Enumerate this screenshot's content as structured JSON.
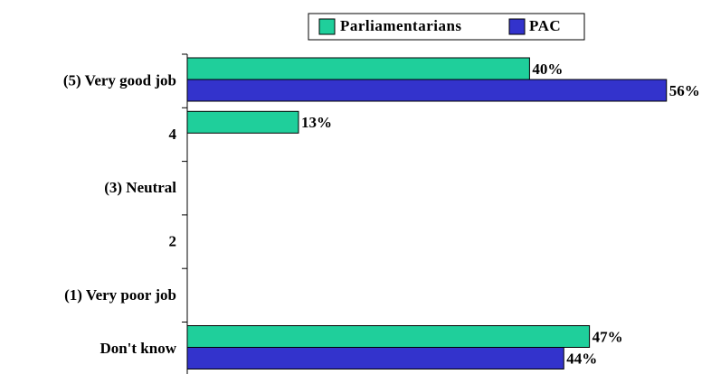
{
  "chart_data": {
    "type": "hbar",
    "categories": [
      "(5) Very good job",
      "4",
      "(3) Neutral",
      "2",
      "(1) Very poor job",
      "Don't know"
    ],
    "series": [
      {
        "name": "Parliamentarians",
        "color": "#1fcf9b",
        "values": [
          40,
          13,
          null,
          null,
          null,
          47
        ],
        "value_labels": [
          "40%",
          "13%",
          null,
          null,
          null,
          "47%"
        ]
      },
      {
        "name": "PAC",
        "color": "#3333cc",
        "values": [
          56,
          null,
          null,
          null,
          null,
          44
        ],
        "value_labels": [
          "56%",
          null,
          null,
          null,
          null,
          "44%"
        ]
      }
    ]
  }
}
